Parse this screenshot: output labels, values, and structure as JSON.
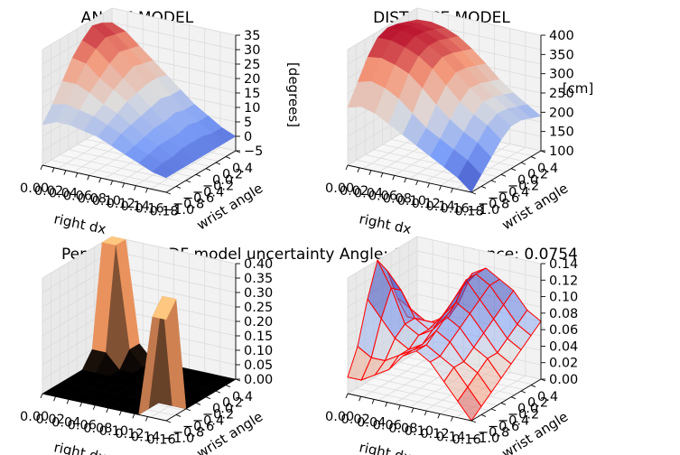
{
  "suptitle": "Penalisation PDF model uncertainty Angle: 0.0754Distance: 0.0754",
  "chart_data": [
    {
      "type": "surface",
      "title": "ANGLE MODEL",
      "xlabel": "right dx",
      "ylabel": "wrist angle",
      "zlabel": "[degrees]",
      "x_ticks": [
        "0.00",
        "0.02",
        "0.04",
        "0.06",
        "0.08",
        "0.10",
        "0.12",
        "0.14",
        "0.16",
        "0.18"
      ],
      "y_ticks": [
        "−1.0",
        "−0.8",
        "−0.6",
        "−0.4",
        "−0.2",
        "0.0",
        "0.2",
        "0.4"
      ],
      "z_ticks": [
        "−5",
        "0",
        "5",
        "10",
        "15",
        "20",
        "25",
        "30",
        "35"
      ],
      "xlim": [
        0,
        0.18
      ],
      "ylim": [
        -1.0,
        0.4
      ],
      "zlim": [
        -5,
        35
      ],
      "colormap": "coolwarm",
      "z_grid": [
        [
          9,
          14,
          20,
          26,
          30,
          33,
          32,
          30
        ],
        [
          11,
          15,
          20,
          25,
          28,
          30,
          29,
          28
        ],
        [
          11,
          14,
          18,
          21,
          24,
          26,
          25,
          24
        ],
        [
          10,
          13,
          15,
          18,
          20,
          22,
          21,
          20
        ],
        [
          9,
          11,
          13,
          15,
          16,
          17,
          17,
          16
        ],
        [
          7,
          9,
          10,
          11,
          12,
          13,
          12,
          12
        ],
        [
          5,
          6,
          7,
          8,
          8,
          9,
          8,
          8
        ],
        [
          3,
          4,
          5,
          5,
          5,
          6,
          5,
          5
        ],
        [
          1,
          2,
          2,
          3,
          3,
          3,
          2,
          2
        ],
        [
          0,
          0,
          0,
          0,
          0,
          0,
          0,
          0
        ]
      ]
    },
    {
      "type": "surface",
      "title": "DISTANCE MODEL",
      "xlabel": "right dx",
      "ylabel": "wrist angle",
      "zlabel": "[cm]",
      "x_ticks": [
        "0.00",
        "0.02",
        "0.04",
        "0.06",
        "0.08",
        "0.10",
        "0.12",
        "0.14",
        "0.16",
        "0.18"
      ],
      "y_ticks": [
        "−1.0",
        "−0.8",
        "−0.6",
        "−0.4",
        "−0.2",
        "0.0",
        "0.2",
        "0.4"
      ],
      "z_ticks": [
        "100",
        "150",
        "200",
        "250",
        "300",
        "350",
        "400"
      ],
      "xlim": [
        0,
        0.18
      ],
      "ylim": [
        -1.0,
        0.4
      ],
      "zlim": [
        100,
        400
      ],
      "colormap": "coolwarm",
      "z_grid": [
        [
          250,
          300,
          350,
          385,
          395,
          390,
          380,
          370
        ],
        [
          260,
          310,
          355,
          385,
          395,
          392,
          382,
          372
        ],
        [
          250,
          300,
          345,
          375,
          388,
          385,
          375,
          365
        ],
        [
          230,
          280,
          330,
          360,
          372,
          370,
          360,
          350
        ],
        [
          210,
          250,
          300,
          335,
          350,
          345,
          335,
          325
        ],
        [
          190,
          220,
          265,
          300,
          318,
          315,
          305,
          295
        ],
        [
          170,
          200,
          235,
          265,
          285,
          282,
          272,
          262
        ],
        [
          150,
          180,
          210,
          240,
          258,
          255,
          245,
          235
        ],
        [
          130,
          160,
          190,
          220,
          235,
          232,
          222,
          212
        ],
        [
          100,
          130,
          160,
          190,
          210,
          210,
          200,
          190
        ]
      ]
    },
    {
      "type": "surface",
      "title": "",
      "xlabel": "right dx",
      "ylabel": "wrist angle",
      "zlabel": "",
      "x_ticks": [
        "0.00",
        "0.02",
        "0.04",
        "0.06",
        "0.08",
        "0.10",
        "0.12",
        "0.14",
        "0.16"
      ],
      "y_ticks": [
        "−1.0",
        "−0.8",
        "−0.6",
        "−0.4",
        "−0.2",
        "0.0",
        "0.2",
        "0.4"
      ],
      "z_ticks": [
        "0.00",
        "0.05",
        "0.10",
        "0.15",
        "0.20",
        "0.25",
        "0.30",
        "0.35",
        "0.40"
      ],
      "xlim": [
        0,
        0.18
      ],
      "ylim": [
        -1.0,
        0.4
      ],
      "zlim": [
        0,
        0.4
      ],
      "colormap": "copper",
      "z_grid": [
        [
          0,
          0,
          0,
          0,
          0,
          0.05,
          0.4,
          0.4
        ],
        [
          0,
          0,
          0,
          0,
          0,
          0.05,
          0.4,
          0.4
        ],
        [
          0,
          0,
          0,
          0,
          0,
          0,
          0.05,
          0.05
        ],
        [
          0,
          0,
          0,
          0,
          0,
          0,
          0,
          0
        ],
        [
          0,
          0,
          0,
          0,
          0,
          0,
          0,
          0
        ],
        [
          0,
          0,
          0,
          0,
          0,
          0,
          0,
          0
        ],
        [
          0,
          0,
          0,
          0,
          0,
          0,
          0,
          0
        ],
        [
          0,
          0,
          0,
          0,
          0,
          0,
          0,
          0
        ],
        [
          0.35,
          0.4,
          0,
          0,
          0,
          0,
          0,
          0
        ],
        [
          0.35,
          0.4,
          0,
          0,
          0,
          0,
          0,
          0
        ]
      ]
    },
    {
      "type": "surface",
      "title": "",
      "xlabel": "right dx",
      "ylabel": "wrist angle",
      "zlabel": "",
      "x_ticks": [
        "0.00",
        "0.02",
        "0.04",
        "0.06",
        "0.08",
        "0.10",
        "0.12",
        "0.14",
        "0.16"
      ],
      "y_ticks": [
        "−1.0",
        "−0.8",
        "−0.6",
        "−0.4",
        "−0.2",
        "0.0",
        "0.2",
        "0.4"
      ],
      "z_ticks": [
        "0.00",
        "0.02",
        "0.04",
        "0.06",
        "0.08",
        "0.10",
        "0.12",
        "0.14"
      ],
      "xlim": [
        0,
        0.18
      ],
      "ylim": [
        -1.0,
        0.4
      ],
      "zlim": [
        0,
        0.14
      ],
      "colormap": "coolwarm-wireframe",
      "edge_color": "#ff0000",
      "z_grid": [
        [
          0.02,
          0.05,
          0.1,
          0.14,
          0.12,
          0.08,
          0.05,
          0.04
        ],
        [
          0.02,
          0.04,
          0.08,
          0.11,
          0.1,
          0.07,
          0.05,
          0.04
        ],
        [
          0.03,
          0.04,
          0.06,
          0.07,
          0.07,
          0.06,
          0.05,
          0.05
        ],
        [
          0.04,
          0.05,
          0.05,
          0.06,
          0.06,
          0.06,
          0.06,
          0.07
        ],
        [
          0.06,
          0.06,
          0.06,
          0.07,
          0.08,
          0.09,
          0.1,
          0.11
        ],
        [
          0.07,
          0.07,
          0.08,
          0.09,
          0.1,
          0.12,
          0.12,
          0.12
        ],
        [
          0.06,
          0.06,
          0.07,
          0.08,
          0.09,
          0.1,
          0.11,
          0.11
        ],
        [
          0.04,
          0.05,
          0.05,
          0.06,
          0.07,
          0.08,
          0.09,
          0.1
        ],
        [
          0.02,
          0.03,
          0.04,
          0.05,
          0.05,
          0.06,
          0.07,
          0.08
        ],
        [
          0.0,
          0.01,
          0.02,
          0.03,
          0.04,
          0.05,
          0.06,
          0.07
        ]
      ]
    }
  ]
}
